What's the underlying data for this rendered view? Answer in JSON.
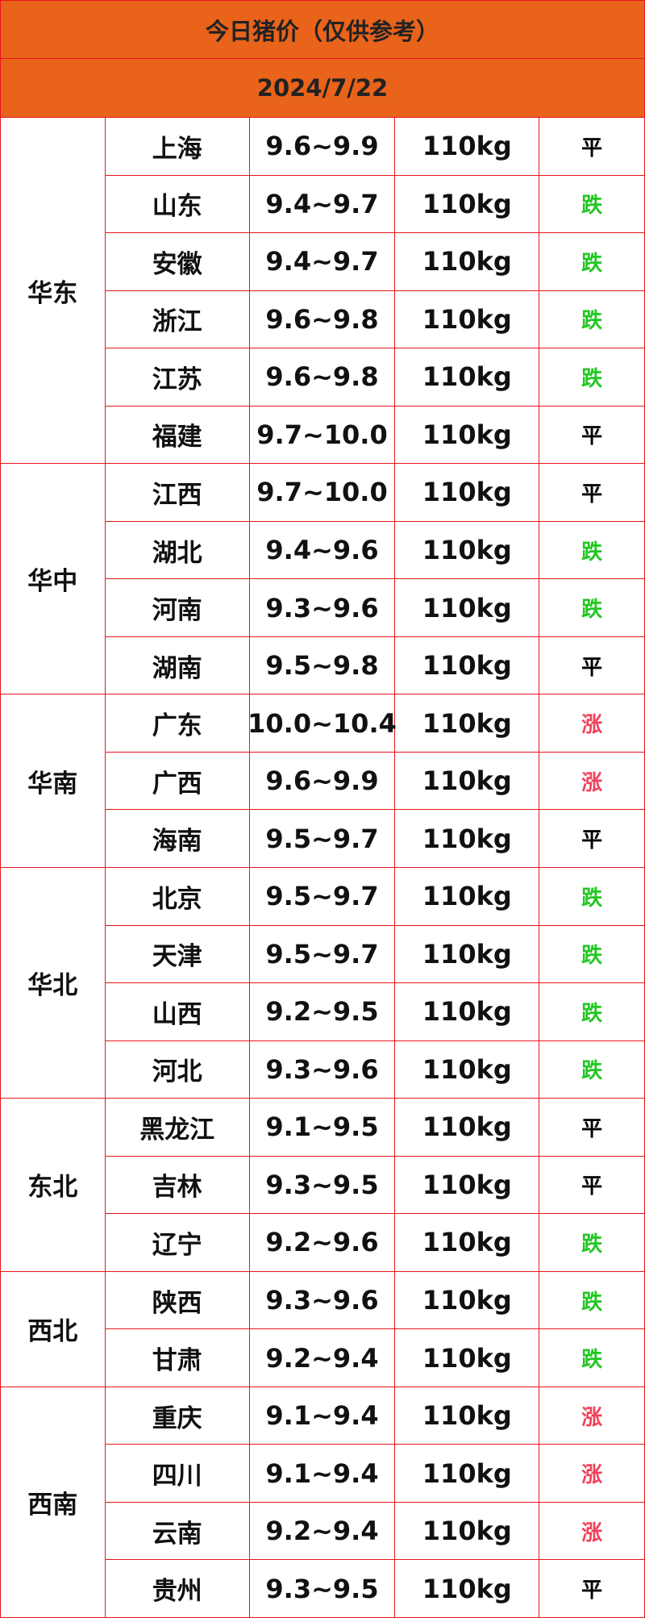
{
  "header": {
    "title": "今日猪价（仅供参考）",
    "date": "2024/7/22"
  },
  "table": {
    "regions": [
      {
        "name": "华东",
        "rows": [
          {
            "province": "上海",
            "price": "9.6~9.9",
            "weight": "110kg",
            "trend": "平",
            "trend_color": "#000000"
          },
          {
            "province": "山东",
            "price": "9.4~9.7",
            "weight": "110kg",
            "trend": "跌",
            "trend_color": "#22c722"
          },
          {
            "province": "安徽",
            "price": "9.4~9.7",
            "weight": "110kg",
            "trend": "跌",
            "trend_color": "#22c722"
          },
          {
            "province": "浙江",
            "price": "9.6~9.8",
            "weight": "110kg",
            "trend": "跌",
            "trend_color": "#22c722"
          },
          {
            "province": "江苏",
            "price": "9.6~9.8",
            "weight": "110kg",
            "trend": "跌",
            "trend_color": "#22c722"
          },
          {
            "province": "福建",
            "price": "9.7~10.0",
            "weight": "110kg",
            "trend": "平",
            "trend_color": "#000000"
          }
        ]
      },
      {
        "name": "华中",
        "rows": [
          {
            "province": "江西",
            "price": "9.7~10.0",
            "weight": "110kg",
            "trend": "平",
            "trend_color": "#000000"
          },
          {
            "province": "湖北",
            "price": "9.4~9.6",
            "weight": "110kg",
            "trend": "跌",
            "trend_color": "#22c722"
          },
          {
            "province": "河南",
            "price": "9.3~9.6",
            "weight": "110kg",
            "trend": "跌",
            "trend_color": "#22c722"
          },
          {
            "province": "湖南",
            "price": "9.5~9.8",
            "weight": "110kg",
            "trend": "平",
            "trend_color": "#000000"
          }
        ]
      },
      {
        "name": "华南",
        "rows": [
          {
            "province": "广东",
            "price": "10.0~10.4",
            "weight": "110kg",
            "trend": "涨",
            "trend_color": "#f0425a"
          },
          {
            "province": "广西",
            "price": "9.6~9.9",
            "weight": "110kg",
            "trend": "涨",
            "trend_color": "#f0425a"
          },
          {
            "province": "海南",
            "price": "9.5~9.7",
            "weight": "110kg",
            "trend": "平",
            "trend_color": "#000000"
          }
        ]
      },
      {
        "name": "华北",
        "rows": [
          {
            "province": "北京",
            "price": "9.5~9.7",
            "weight": "110kg",
            "trend": "跌",
            "trend_color": "#22c722"
          },
          {
            "province": "天津",
            "price": "9.5~9.7",
            "weight": "110kg",
            "trend": "跌",
            "trend_color": "#22c722"
          },
          {
            "province": "山西",
            "price": "9.2~9.5",
            "weight": "110kg",
            "trend": "跌",
            "trend_color": "#22c722"
          },
          {
            "province": "河北",
            "price": "9.3~9.6",
            "weight": "110kg",
            "trend": "跌",
            "trend_color": "#22c722"
          }
        ]
      },
      {
        "name": "东北",
        "rows": [
          {
            "province": "黑龙江",
            "price": "9.1~9.5",
            "weight": "110kg",
            "trend": "平",
            "trend_color": "#000000"
          },
          {
            "province": "吉林",
            "price": "9.3~9.5",
            "weight": "110kg",
            "trend": "平",
            "trend_color": "#000000"
          },
          {
            "province": "辽宁",
            "price": "9.2~9.6",
            "weight": "110kg",
            "trend": "跌",
            "trend_color": "#22c722"
          }
        ]
      },
      {
        "name": "西北",
        "rows": [
          {
            "province": "陕西",
            "price": "9.3~9.6",
            "weight": "110kg",
            "trend": "跌",
            "trend_color": "#22c722"
          },
          {
            "province": "甘肃",
            "price": "9.2~9.4",
            "weight": "110kg",
            "trend": "跌",
            "trend_color": "#22c722"
          }
        ]
      },
      {
        "name": "西南",
        "rows": [
          {
            "province": "重庆",
            "price": "9.1~9.4",
            "weight": "110kg",
            "trend": "涨",
            "trend_color": "#f0425a"
          },
          {
            "province": "四川",
            "price": "9.1~9.4",
            "weight": "110kg",
            "trend": "涨",
            "trend_color": "#f0425a"
          },
          {
            "province": "云南",
            "price": "9.2~9.4",
            "weight": "110kg",
            "trend": "涨",
            "trend_color": "#f0425a"
          },
          {
            "province": "贵州",
            "price": "9.3~9.5",
            "weight": "110kg",
            "trend": "平",
            "trend_color": "#000000"
          }
        ]
      }
    ]
  }
}
